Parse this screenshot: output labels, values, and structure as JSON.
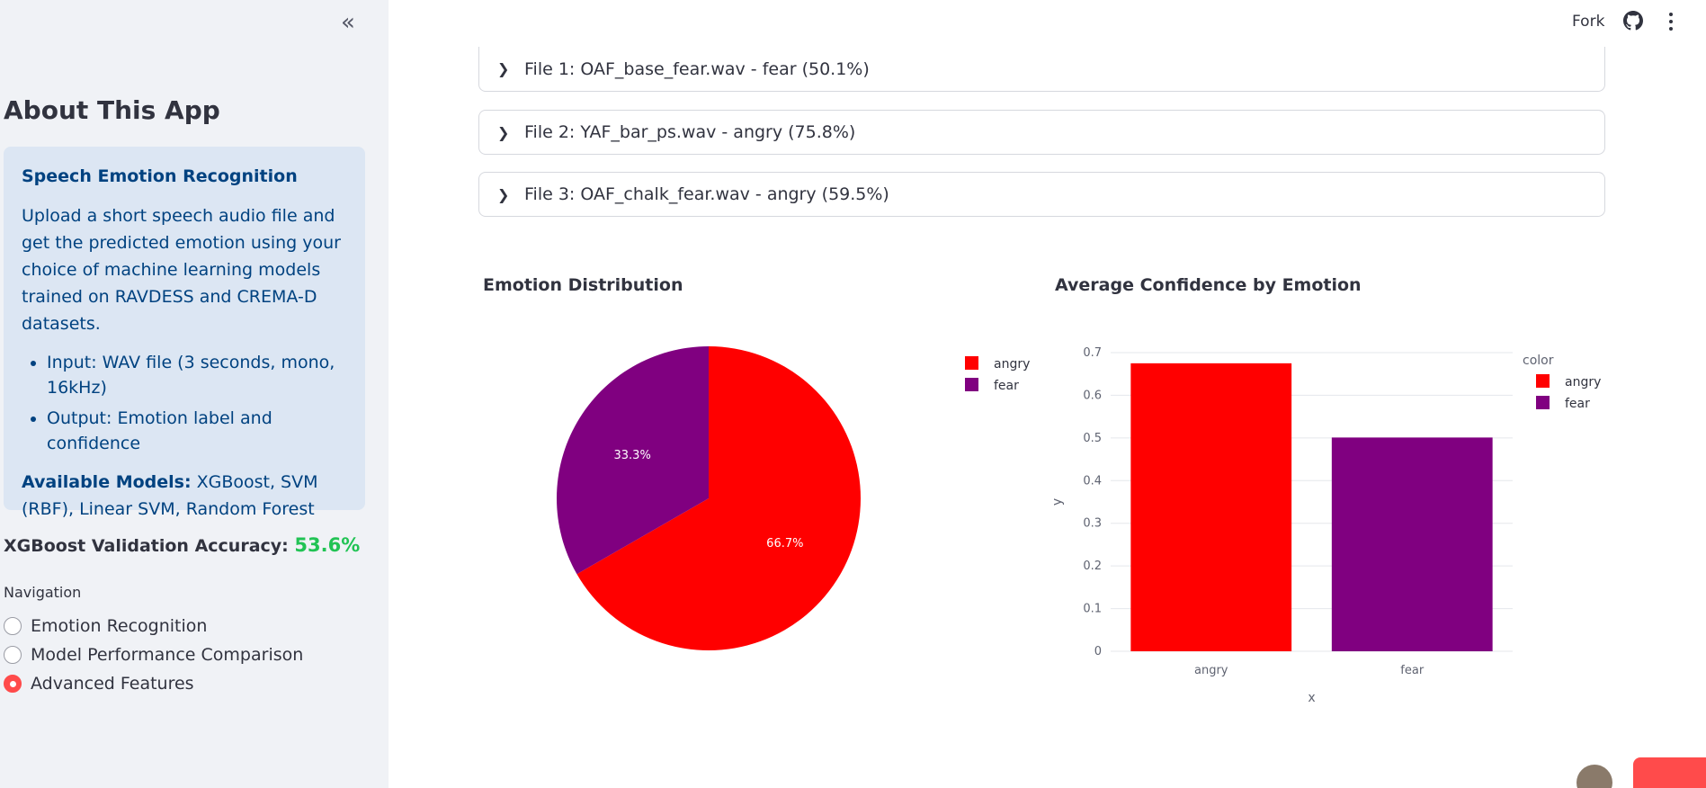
{
  "sidebar": {
    "collapse_icon": "chevrons-left-icon",
    "about_title": "About This App",
    "info_box": {
      "title": "Speech Emotion Recognition",
      "description": "Upload a short speech audio file and get the predicted emotion using your choice of machine learning models trained on RAVDESS and CREMA-D datasets.",
      "bullets": [
        "Input: WAV file (3 seconds, mono, 16kHz)",
        "Output: Emotion label and confidence"
      ],
      "models_label": "Available Models:",
      "models_value": " XGBoost, SVM (RBF), Linear SVM, Random Forest"
    },
    "accuracy_label": "XGBoost Validation Accuracy: ",
    "accuracy_value": "53.6%",
    "navigation_label": "Navigation",
    "nav_options": [
      "Emotion Recognition",
      "Model Performance Comparison",
      "Advanced Features"
    ],
    "nav_selected": "Advanced Features"
  },
  "header": {
    "fork_label": "Fork",
    "github_icon": "github-icon",
    "menu_icon": "more-vertical-icon"
  },
  "files": [
    {
      "label": "File 1: OAF_base_fear.wav - fear (50.1%)"
    },
    {
      "label": "File 2: YAF_bar_ps.wav - angry (75.8%)"
    },
    {
      "label": "File 3: OAF_chalk_fear.wav - angry (59.5%)"
    }
  ],
  "colors": {
    "angry": "#ff0000",
    "fear": "#800080",
    "accent": "#ff4b4b",
    "success": "#21c354"
  },
  "chart_data": [
    {
      "type": "pie",
      "title": "Emotion Distribution",
      "labels": [
        "angry",
        "fear"
      ],
      "values": [
        66.7,
        33.3
      ],
      "value_labels": [
        "66.7%",
        "33.3%"
      ],
      "legend": [
        "angry",
        "fear"
      ],
      "legend_position": "right"
    },
    {
      "type": "bar",
      "title": "Average Confidence by Emotion",
      "categories": [
        "angry",
        "fear"
      ],
      "values": [
        0.675,
        0.501
      ],
      "xlabel": "x",
      "ylabel": "y",
      "ylim": [
        0,
        0.7
      ],
      "yticks": [
        "0",
        "0.1",
        "0.2",
        "0.3",
        "0.4",
        "0.5",
        "0.6",
        "0.7"
      ],
      "legend_title": "color",
      "legend": [
        "angry",
        "fear"
      ],
      "legend_position": "right",
      "grid": true
    }
  ]
}
